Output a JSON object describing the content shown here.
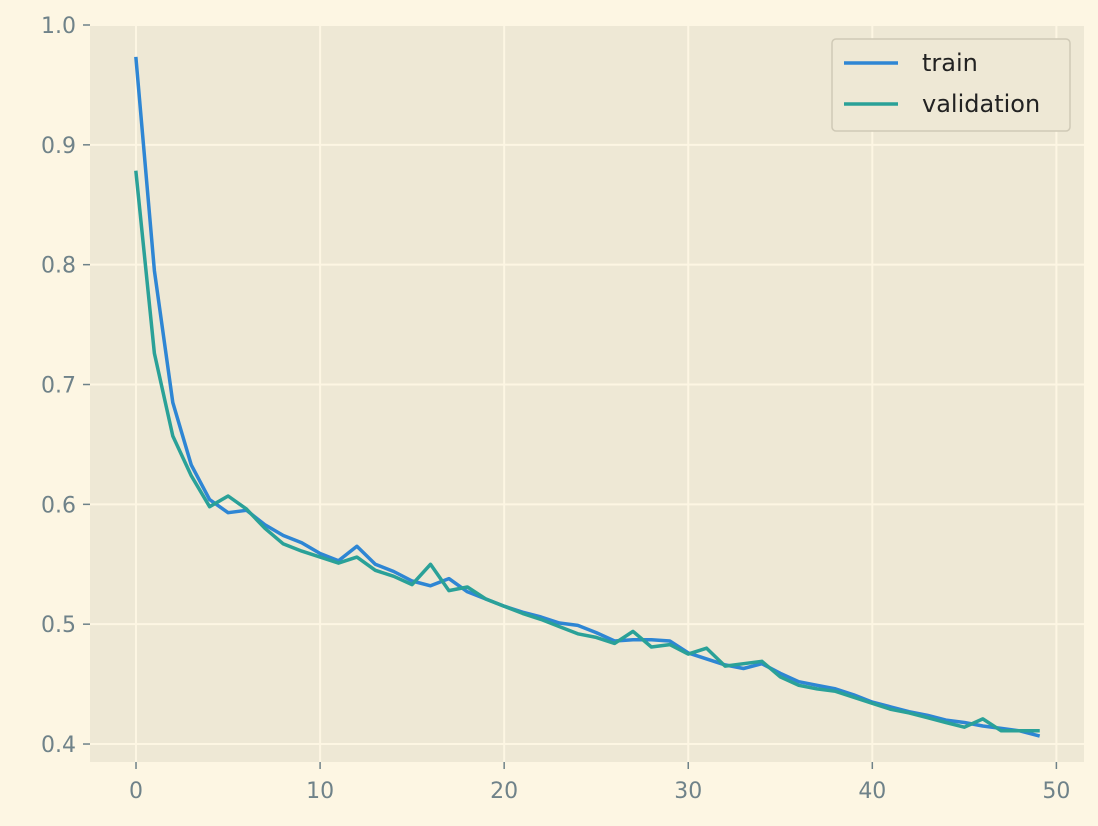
{
  "chart_data": {
    "type": "line",
    "title": "",
    "xlabel": "",
    "ylabel": "",
    "xlim": [
      -2.5,
      51.5
    ],
    "ylim": [
      0.385,
      1.0
    ],
    "x_ticks": [
      0,
      10,
      20,
      30,
      40,
      50
    ],
    "x_tick_labels": [
      "0",
      "10",
      "20",
      "30",
      "40",
      "50"
    ],
    "y_ticks": [
      0.4,
      0.5,
      0.6,
      0.7,
      0.8,
      0.9,
      1.0
    ],
    "y_tick_labels": [
      "0.4",
      "0.5",
      "0.6",
      "0.7",
      "0.8",
      "0.9",
      "1.0"
    ],
    "grid": true,
    "legend_position": "top-right",
    "x": [
      0,
      1,
      2,
      3,
      4,
      5,
      6,
      7,
      8,
      9,
      10,
      11,
      12,
      13,
      14,
      15,
      16,
      17,
      18,
      19,
      20,
      21,
      22,
      23,
      24,
      25,
      26,
      27,
      28,
      29,
      30,
      31,
      32,
      33,
      34,
      35,
      36,
      37,
      38,
      39,
      40,
      41,
      42,
      43,
      44,
      45,
      46,
      47,
      48,
      49
    ],
    "series": [
      {
        "name": "train",
        "color": "#2e86d4",
        "values": [
          0.972,
          0.795,
          0.685,
          0.633,
          0.604,
          0.593,
          0.595,
          0.583,
          0.574,
          0.568,
          0.559,
          0.553,
          0.565,
          0.55,
          0.544,
          0.536,
          0.532,
          0.538,
          0.527,
          0.521,
          0.515,
          0.51,
          0.506,
          0.501,
          0.499,
          0.493,
          0.486,
          0.487,
          0.487,
          0.486,
          0.476,
          0.471,
          0.466,
          0.463,
          0.467,
          0.459,
          0.452,
          0.449,
          0.446,
          0.441,
          0.435,
          0.431,
          0.427,
          0.424,
          0.42,
          0.418,
          0.415,
          0.413,
          0.411,
          0.407
        ]
      },
      {
        "name": "validation",
        "color": "#2aa198",
        "values": [
          0.877,
          0.726,
          0.657,
          0.624,
          0.598,
          0.607,
          0.596,
          0.58,
          0.567,
          0.561,
          0.556,
          0.551,
          0.556,
          0.545,
          0.54,
          0.533,
          0.55,
          0.528,
          0.531,
          0.521,
          0.515,
          0.509,
          0.504,
          0.498,
          0.492,
          0.489,
          0.484,
          0.494,
          0.481,
          0.483,
          0.475,
          0.48,
          0.465,
          0.467,
          0.469,
          0.456,
          0.449,
          0.446,
          0.444,
          0.439,
          0.434,
          0.429,
          0.426,
          0.422,
          0.418,
          0.414,
          0.421,
          0.411,
          0.411,
          0.411
        ]
      }
    ]
  },
  "colors": {
    "page_background": "#fdf6e3",
    "plot_background": "#eee8d5",
    "grid": "#fdf6e3",
    "tick_label": "#6f8289"
  }
}
